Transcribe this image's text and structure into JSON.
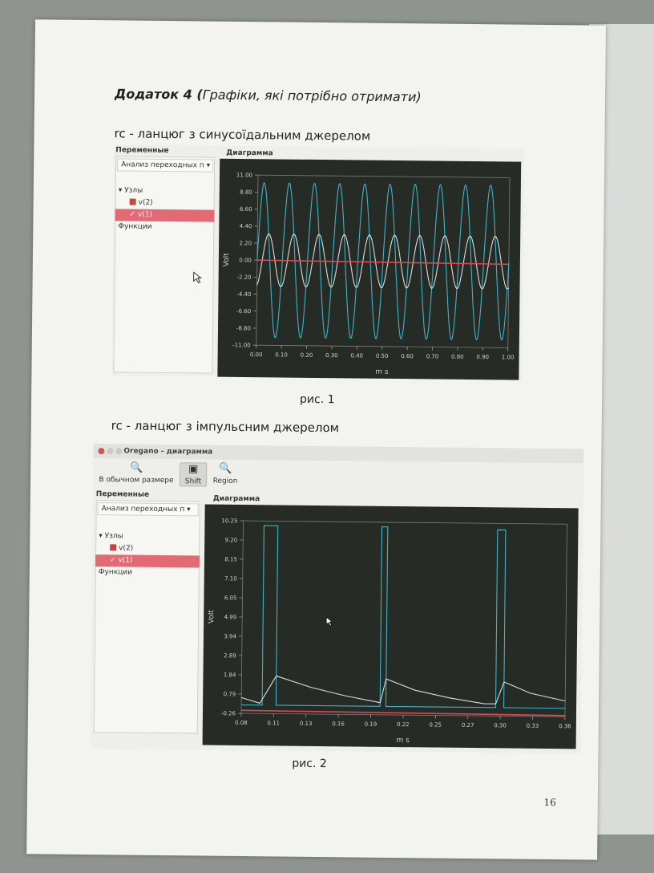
{
  "document": {
    "heading_bold": "Додаток 4 (",
    "heading_italic": "Графіки, які потрібно отримати)",
    "section1_title": "rc - ланцюг з синусоїдальним джерелом",
    "section2_title": "rc - ланцюг з імпульсним джерелом",
    "caption1": "рис. 1",
    "caption2": "рис. 2",
    "page_number": "16"
  },
  "figure1": {
    "panel_title": "Переменные",
    "dropdown_value": "Анализ переходных п",
    "tree_root": "Узлы",
    "nodes": [
      "v(2)",
      "v(1)"
    ],
    "functions_label": "Функции",
    "plot_title": "Диаграмма"
  },
  "figure2": {
    "window_title": "Oregano - диаграмма",
    "toolbar": {
      "normal_size": "В обычном размере",
      "shift": "Shift",
      "region": "Region"
    },
    "panel_title": "Переменные",
    "dropdown_value": "Анализ переходных п",
    "tree_root": "Узлы",
    "nodes": [
      "v(2)",
      "v(1)"
    ],
    "functions_label": "Функции",
    "plot_title": "Диаграмма"
  },
  "chart_data": [
    {
      "type": "line",
      "xlabel": "m s",
      "ylabel": "Volt",
      "xlim": [
        0,
        1.0
      ],
      "ylim": [
        -11.0,
        11.0
      ],
      "x_ticks": [
        "0.00",
        "0.10",
        "0.20",
        "0.30",
        "0.40",
        "0.50",
        "0.60",
        "0.70",
        "0.80",
        "0.90",
        "1.00"
      ],
      "y_ticks": [
        "11.00",
        "8.80",
        "6.60",
        "4.40",
        "2.20",
        "0.00",
        "-2.20",
        "-4.40",
        "-6.60",
        "-8.80",
        "-11.00"
      ],
      "series": [
        {
          "color": "#3fb4c8",
          "kind": "sine",
          "amplitude": 10,
          "frequency_cycles": 10
        },
        {
          "color": "#d8dde0",
          "kind": "sine",
          "amplitude": 3.4,
          "frequency_cycles": 10,
          "phase_lag_cycles": 0.2
        },
        {
          "color": "#e0474f",
          "kind": "line",
          "x": [
            0,
            1.0
          ],
          "y": [
            0.0,
            -0.2
          ]
        }
      ]
    },
    {
      "type": "line",
      "xlabel": "m s",
      "ylabel": "Volt",
      "xlim": [
        0.08,
        0.36
      ],
      "ylim": [
        -0.26,
        10.25
      ],
      "x_ticks": [
        "0.08",
        "0.11",
        "0.13",
        "0.16",
        "0.19",
        "0.22",
        "0.25",
        "0.27",
        "0.30",
        "0.33",
        "0.36"
      ],
      "y_ticks": [
        "10.25",
        "9.20",
        "8.15",
        "7.10",
        "6.05",
        "4.99",
        "3.94",
        "2.89",
        "1.84",
        "0.79",
        "-0.26"
      ],
      "series": [
        {
          "color": "#3fb4c8",
          "kind": "pulse",
          "x": [
            0.08,
            0.098,
            0.098,
            0.1,
            0.1,
            0.11,
            0.11,
            0.2,
            0.2,
            0.205,
            0.205,
            0.3,
            0.3,
            0.307,
            0.307,
            0.36
          ],
          "y": [
            0.2,
            0.2,
            10.0,
            10.0,
            10.0,
            10.0,
            0.2,
            0.2,
            10.0,
            10.0,
            0.2,
            0.2,
            9.9,
            9.9,
            0.2,
            0.2
          ]
        },
        {
          "color": "#d8dde0",
          "kind": "rc",
          "x": [
            0.08,
            0.096,
            0.11,
            0.14,
            0.17,
            0.2,
            0.205,
            0.23,
            0.26,
            0.29,
            0.3,
            0.307,
            0.33,
            0.36
          ],
          "y": [
            0.6,
            0.3,
            1.8,
            1.2,
            0.75,
            0.4,
            1.7,
            1.1,
            0.7,
            0.4,
            0.4,
            1.6,
            1.0,
            0.6
          ]
        },
        {
          "color": "#e0474f",
          "kind": "line",
          "x": [
            0.08,
            0.36
          ],
          "y": [
            -0.1,
            -0.2
          ]
        }
      ]
    }
  ]
}
